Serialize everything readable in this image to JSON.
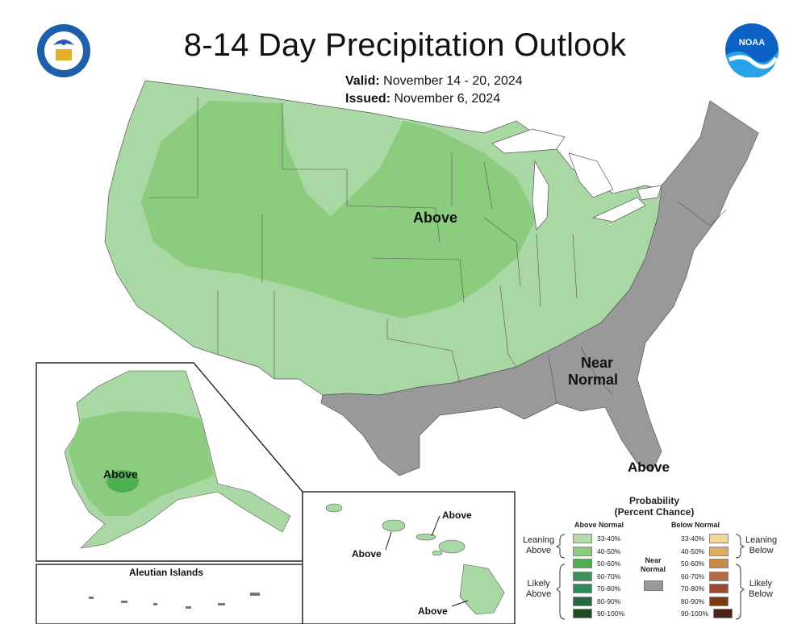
{
  "header": {
    "title": "8-14 Day Precipitation Outlook",
    "valid_label": "Valid:",
    "valid_value": "November 14 - 20, 2024",
    "issued_label": "Issued:",
    "issued_value": "November 6, 2024"
  },
  "logos": {
    "left": "department-of-commerce-seal",
    "right": "noaa-logo",
    "right_text": "NOAA"
  },
  "colors": {
    "lean_above": "#a9d8a4",
    "above_40_50": "#8ccc7e",
    "above_50_60": "#4caf50",
    "near_normal": "#999999",
    "below_33_40": "#f1d8a0",
    "below_40_50": "#ddb065"
  },
  "map_labels": {
    "conus_above": "Above",
    "conus_near_normal_1": "Near",
    "conus_near_normal_2": "Normal",
    "florida_above": "Above",
    "alaska_above": "Above",
    "hawaii_above_1": "Above",
    "hawaii_above_2": "Above",
    "hawaii_above_3": "Above"
  },
  "insets": {
    "aleutian_title": "Aleutian Islands"
  },
  "legend": {
    "title_line1": "Probability",
    "title_line2": "(Percent Chance)",
    "above_head": "Above Normal",
    "below_head": "Below Normal",
    "near_head_1": "Near",
    "near_head_2": "Normal",
    "leaning_above_1": "Leaning",
    "leaning_above_2": "Above",
    "likely_above_1": "Likely",
    "likely_above_2": "Above",
    "leaning_below_1": "Leaning",
    "leaning_below_2": "Below",
    "likely_below_1": "Likely",
    "likely_below_2": "Below",
    "above_rows": [
      {
        "label": "33-40%",
        "color": "#b2dca9"
      },
      {
        "label": "40-50%",
        "color": "#8ccc7e"
      },
      {
        "label": "50-60%",
        "color": "#4cae4c"
      },
      {
        "label": "60-70%",
        "color": "#3f8f5a"
      },
      {
        "label": "70-80%",
        "color": "#2e8b57"
      },
      {
        "label": "80-90%",
        "color": "#236b3e"
      },
      {
        "label": "90-100%",
        "color": "#1e4d23"
      }
    ],
    "below_rows": [
      {
        "label": "33-40%",
        "color": "#f2d59a"
      },
      {
        "label": "40-50%",
        "color": "#dcae60"
      },
      {
        "label": "50-60%",
        "color": "#c98a45"
      },
      {
        "label": "60-70%",
        "color": "#b36a40"
      },
      {
        "label": "70-80%",
        "color": "#9a4b32"
      },
      {
        "label": "80-90%",
        "color": "#7a3a14"
      },
      {
        "label": "90-100%",
        "color": "#4a2418"
      }
    ]
  }
}
